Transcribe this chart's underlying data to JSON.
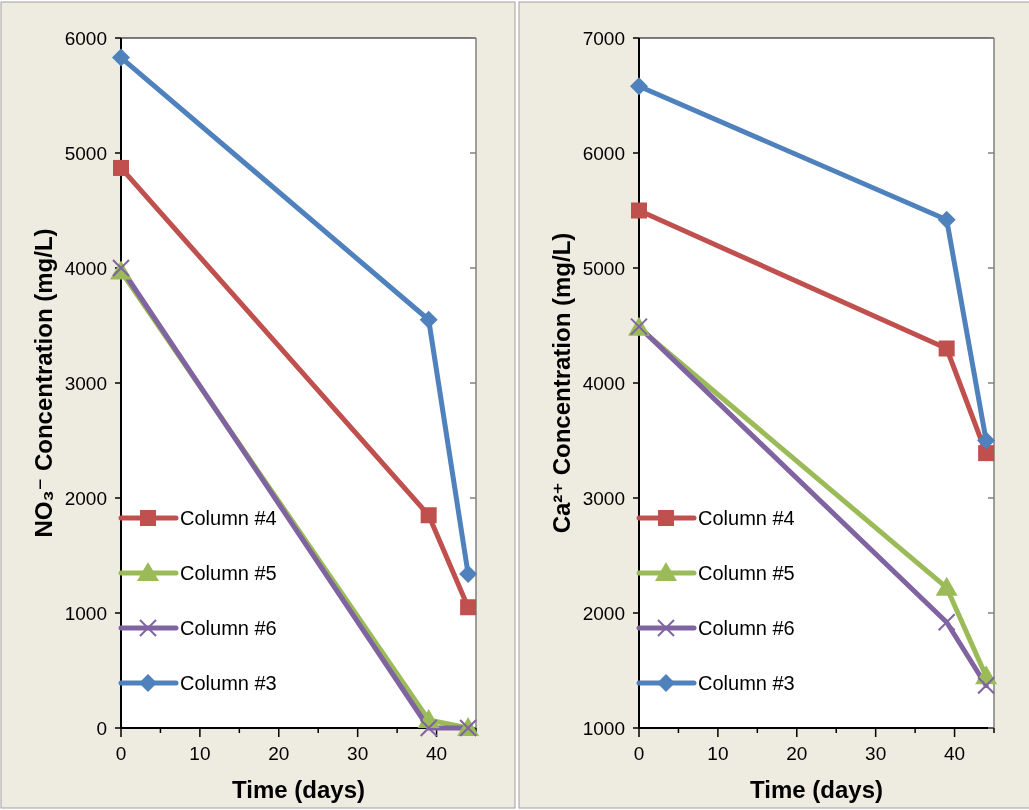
{
  "chart_data": [
    {
      "type": "line",
      "xlabel": "Time (days)",
      "ylabel": "NO₃⁻ Concentration (mg/L)",
      "xlim": [
        0,
        45
      ],
      "xticks": [
        0,
        {
          "value": 5,
          "label": null
        },
        10,
        {
          "value": 15,
          "label": null
        },
        20,
        {
          "value": 25,
          "label": null
        },
        30,
        {
          "value": 35,
          "label": null
        },
        40,
        {
          "value": 45,
          "label": null
        }
      ],
      "ylim": [
        0,
        6000
      ],
      "yticks": [
        0,
        1000,
        2000,
        3000,
        4000,
        5000,
        6000
      ],
      "grid": false,
      "legend": "bottom left",
      "x": [
        0,
        39,
        44
      ],
      "series": [
        {
          "name": "Column #4",
          "color": "#c0504d",
          "marker": "square",
          "values": [
            4870,
            1850,
            1050
          ]
        },
        {
          "name": "Column #5",
          "color": "#9bbb59",
          "marker": "triangle",
          "values": [
            3970,
            70,
            0
          ]
        },
        {
          "name": "Column #6",
          "color": "#8064a2",
          "marker": "cross",
          "values": [
            4000,
            0,
            0
          ]
        },
        {
          "name": "Column #3",
          "color": "#4f81bd",
          "marker": "diamond",
          "values": [
            5830,
            3550,
            1340
          ]
        }
      ]
    },
    {
      "type": "line",
      "xlabel": "Time (days)",
      "ylabel": "Ca²⁺ Concentration (mg/L)",
      "xlim": [
        0,
        45
      ],
      "xticks": [
        0,
        {
          "value": 5,
          "label": null
        },
        10,
        {
          "value": 15,
          "label": null
        },
        20,
        {
          "value": 25,
          "label": null
        },
        30,
        {
          "value": 35,
          "label": null
        },
        40,
        {
          "value": 45,
          "label": null
        }
      ],
      "ylim": [
        1000,
        7000
      ],
      "yticks": [
        1000,
        2000,
        3000,
        4000,
        5000,
        6000,
        7000
      ],
      "grid": false,
      "legend": "bottom left",
      "x": [
        0,
        39,
        44
      ],
      "series": [
        {
          "name": "Column #4",
          "color": "#c0504d",
          "marker": "square",
          "values": [
            5500,
            4300,
            3390
          ]
        },
        {
          "name": "Column #5",
          "color": "#9bbb59",
          "marker": "triangle",
          "values": [
            4480,
            2220,
            1450
          ]
        },
        {
          "name": "Column #6",
          "color": "#8064a2",
          "marker": "cross",
          "values": [
            4490,
            1920,
            1370
          ]
        },
        {
          "name": "Column #3",
          "color": "#4f81bd",
          "marker": "diamond",
          "values": [
            6580,
            5420,
            3500
          ]
        }
      ]
    }
  ]
}
